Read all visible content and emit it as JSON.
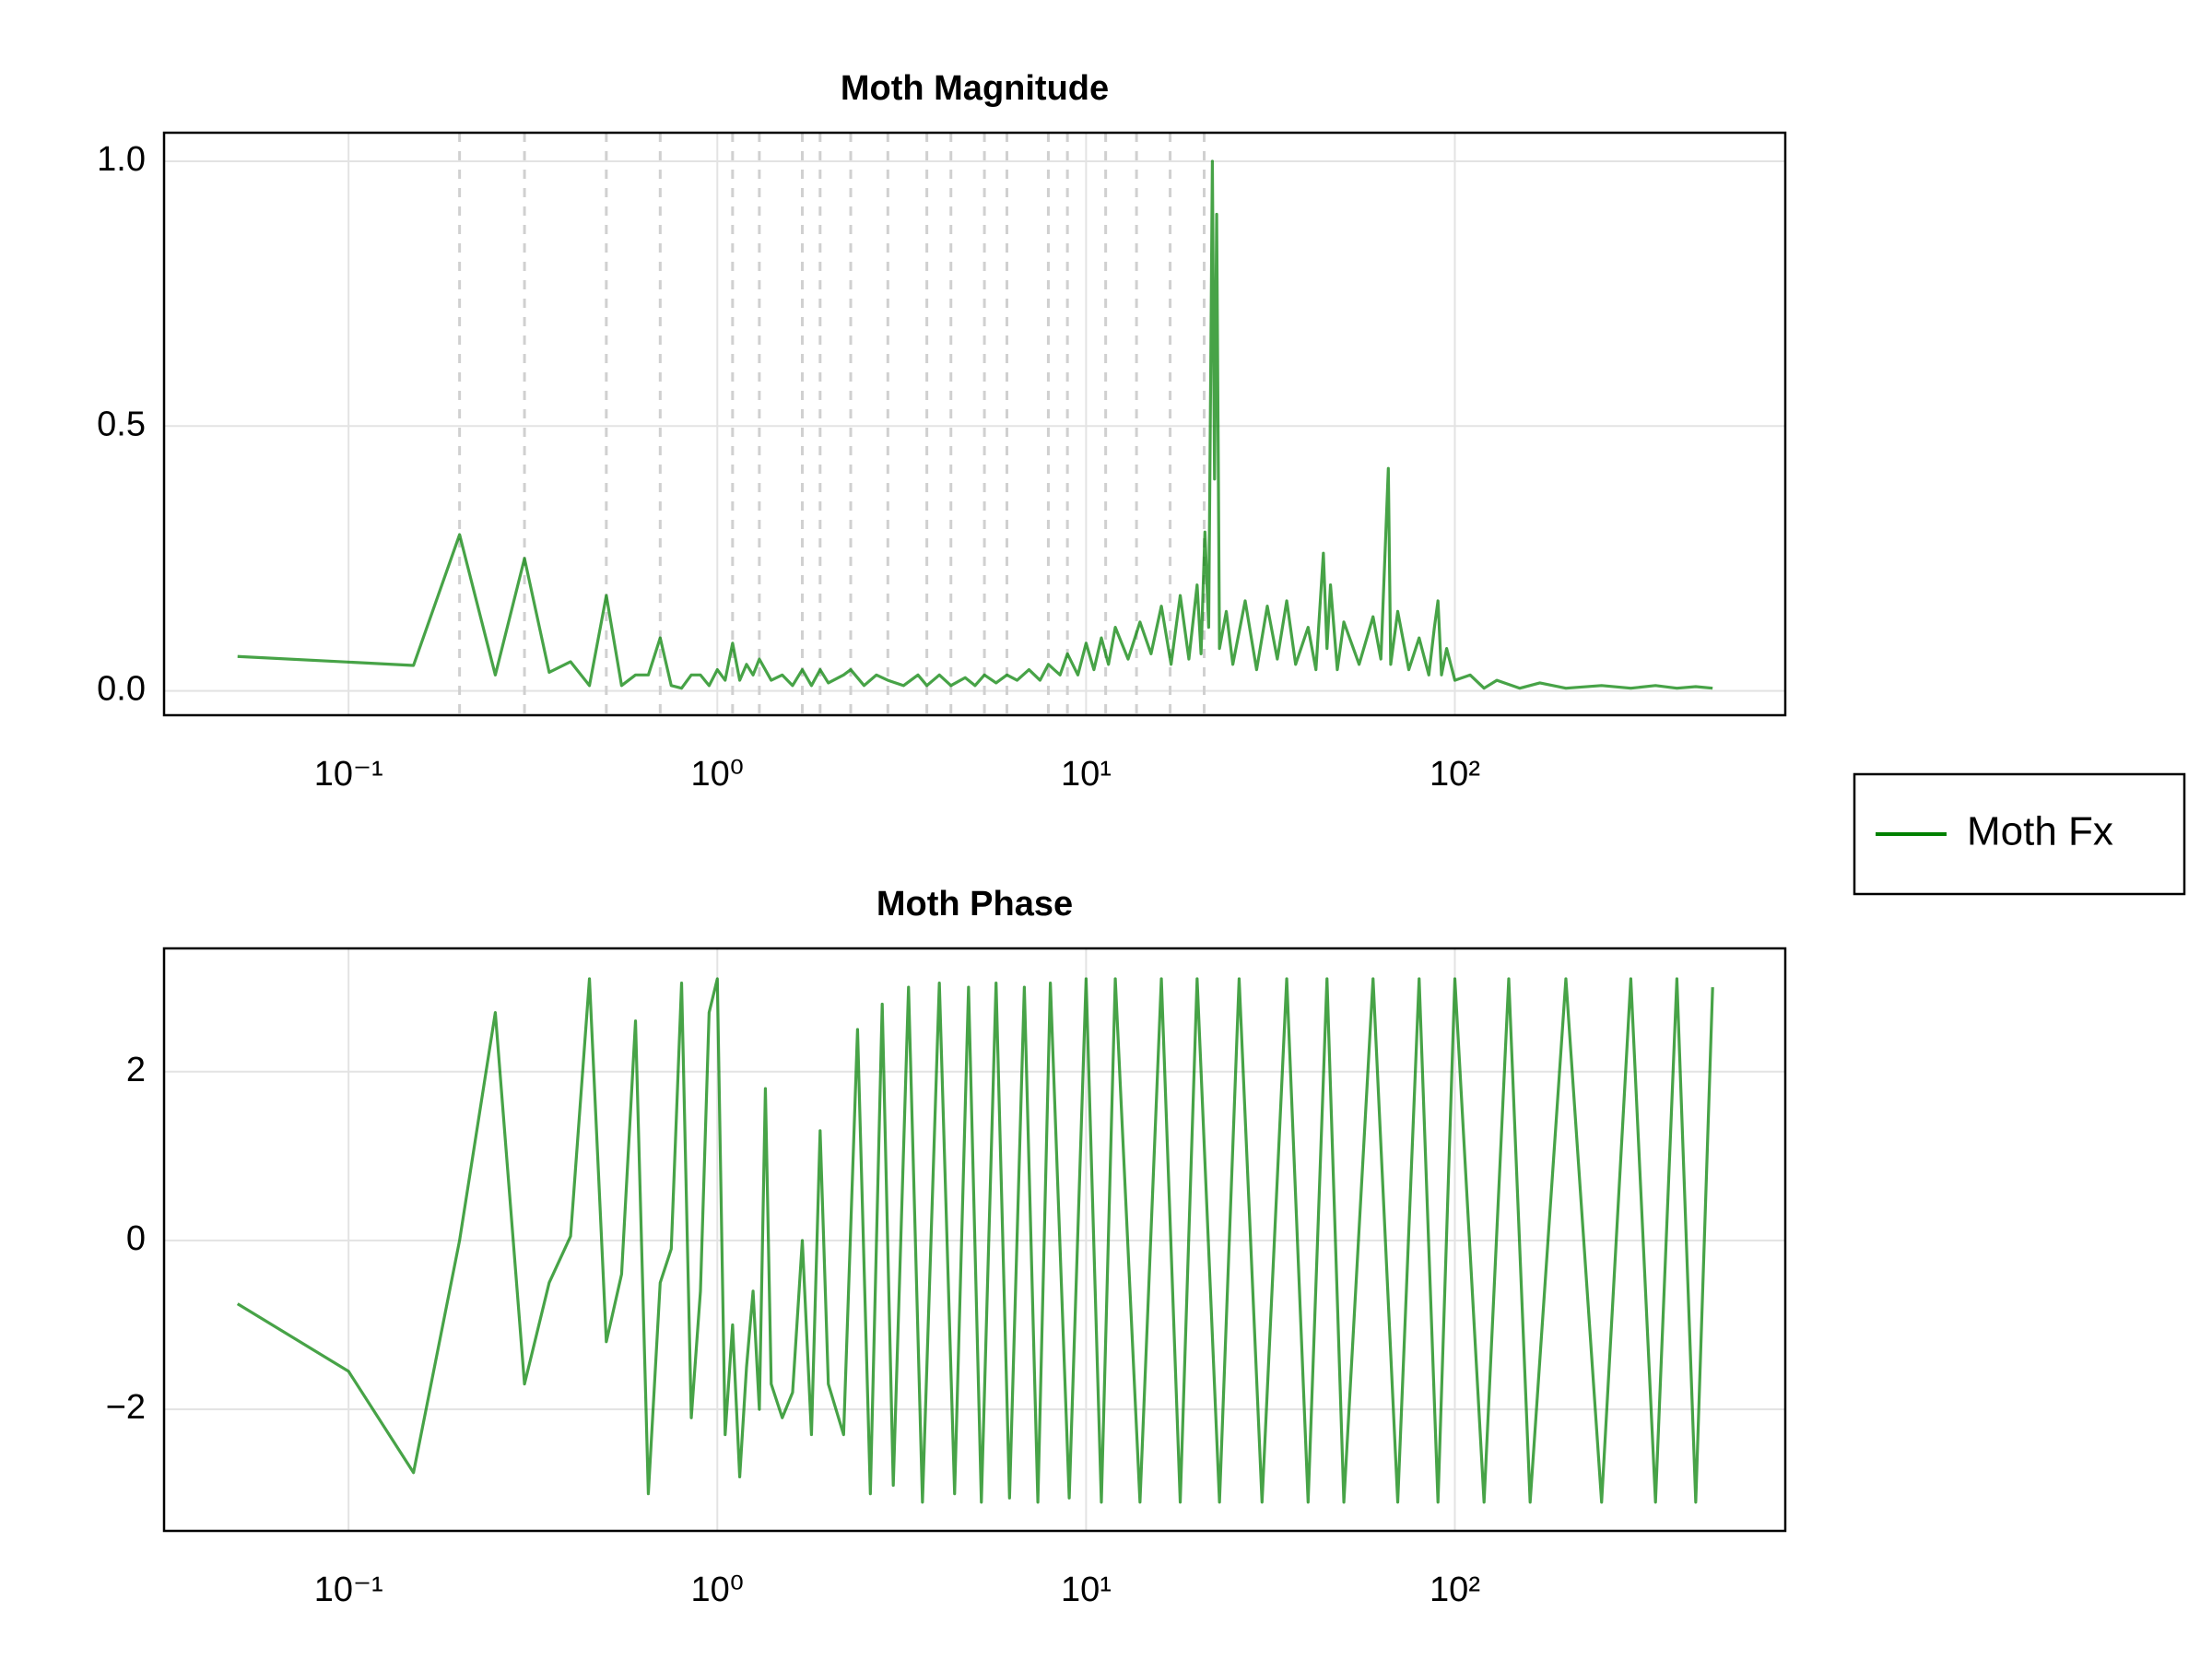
{
  "chart_data": [
    {
      "type": "line",
      "title": "Moth Magnitude",
      "xscale": "log",
      "grid": true,
      "legend": "right",
      "xlim": [
        0.0316,
        787
      ],
      "ylim": [
        -0.046,
        1.054
      ],
      "xticks": [
        {
          "value": 0.1,
          "label": "10⁻¹"
        },
        {
          "value": 1,
          "label": "10⁰"
        },
        {
          "value": 10,
          "label": "10¹"
        },
        {
          "value": 100,
          "label": "10²"
        }
      ],
      "yticks": [
        {
          "value": 0,
          "label": "0.0"
        },
        {
          "value": 0.5,
          "label": "0.5"
        },
        {
          "value": 1,
          "label": "1.0"
        }
      ],
      "vlines": [
        0.2,
        0.3,
        0.5,
        0.7,
        1.1,
        1.3,
        1.7,
        1.9,
        2.3,
        2.9,
        3.7,
        4.3,
        5.3,
        6.1,
        7.9,
        8.9,
        11.3,
        13.7,
        16.9,
        20.9
      ],
      "x": [
        0.05,
        0.15,
        0.2,
        0.25,
        0.3,
        0.35,
        0.4,
        0.45,
        0.5,
        0.55,
        0.6,
        0.65,
        0.7,
        0.75,
        0.8,
        0.85,
        0.9,
        0.95,
        1.0,
        1.05,
        1.1,
        1.15,
        1.2,
        1.25,
        1.3,
        1.4,
        1.5,
        1.6,
        1.7,
        1.8,
        1.9,
        2.0,
        2.2,
        2.3,
        2.5,
        2.7,
        2.9,
        3.2,
        3.5,
        3.7,
        4.0,
        4.3,
        4.7,
        5.0,
        5.3,
        5.7,
        6.1,
        6.5,
        7.0,
        7.5,
        7.9,
        8.5,
        8.9,
        9.5,
        10,
        10.5,
        11,
        11.5,
        12,
        13,
        14,
        15,
        16,
        17,
        18,
        19,
        20,
        20.5,
        21,
        21.5,
        22,
        22.3,
        22.6,
        23,
        24,
        25,
        27,
        29,
        31,
        33,
        35,
        37,
        40,
        42,
        44,
        45,
        46,
        48,
        50,
        55,
        60,
        63,
        65,
        66,
        67,
        70,
        75,
        80,
        85,
        88,
        90,
        92,
        95,
        100,
        110,
        120,
        130,
        150,
        170,
        200,
        250,
        300,
        350,
        400,
        450,
        500
      ],
      "series": [
        {
          "name": "Moth Fx",
          "color": "#008000",
          "values": [
            0.065,
            0.048,
            0.295,
            0.03,
            0.25,
            0.035,
            0.055,
            0.01,
            0.18,
            0.01,
            0.03,
            0.03,
            0.1,
            0.01,
            0.005,
            0.03,
            0.03,
            0.01,
            0.04,
            0.02,
            0.09,
            0.02,
            0.05,
            0.03,
            0.06,
            0.02,
            0.03,
            0.01,
            0.04,
            0.01,
            0.04,
            0.015,
            0.03,
            0.04,
            0.01,
            0.03,
            0.02,
            0.01,
            0.03,
            0.01,
            0.03,
            0.01,
            0.025,
            0.01,
            0.03,
            0.015,
            0.03,
            0.02,
            0.04,
            0.02,
            0.05,
            0.03,
            0.07,
            0.03,
            0.09,
            0.04,
            0.1,
            0.05,
            0.12,
            0.06,
            0.13,
            0.07,
            0.16,
            0.05,
            0.18,
            0.06,
            0.2,
            0.07,
            0.3,
            0.12,
            1.0,
            0.4,
            0.9,
            0.08,
            0.15,
            0.05,
            0.17,
            0.04,
            0.16,
            0.06,
            0.17,
            0.05,
            0.12,
            0.04,
            0.26,
            0.08,
            0.2,
            0.04,
            0.13,
            0.05,
            0.14,
            0.06,
            0.3,
            0.42,
            0.05,
            0.15,
            0.04,
            0.1,
            0.03,
            0.12,
            0.17,
            0.03,
            0.08,
            0.02,
            0.03,
            0.005,
            0.02,
            0.005,
            0.015,
            0.005,
            0.01,
            0.005,
            0.01,
            0.005,
            0.008,
            0.005
          ]
        }
      ]
    },
    {
      "type": "line",
      "title": "Moth Phase",
      "xscale": "log",
      "grid": true,
      "xlim": [
        0.0316,
        787
      ],
      "ylim": [
        -3.44,
        3.46
      ],
      "xticks": [
        {
          "value": 0.1,
          "label": "10⁻¹"
        },
        {
          "value": 1,
          "label": "10⁰"
        },
        {
          "value": 10,
          "label": "10¹"
        },
        {
          "value": 100,
          "label": "10²"
        }
      ],
      "yticks": [
        {
          "value": -2,
          "label": "−2"
        },
        0,
        2
      ],
      "x": [
        0.05,
        0.1,
        0.15,
        0.2,
        0.25,
        0.3,
        0.35,
        0.4,
        0.45,
        0.5,
        0.55,
        0.6,
        0.65,
        0.7,
        0.75,
        0.8,
        0.85,
        0.9,
        0.95,
        1.0,
        1.05,
        1.1,
        1.15,
        1.2,
        1.25,
        1.3,
        1.35,
        1.4,
        1.5,
        1.6,
        1.7,
        1.8,
        1.9,
        2.0,
        2.2,
        2.4,
        2.6,
        2.8,
        3.0,
        3.3,
        3.6,
        4.0,
        4.4,
        4.8,
        5.2,
        5.7,
        6.2,
        6.8,
        7.4,
        8,
        9,
        10,
        11,
        12,
        14,
        16,
        18,
        20,
        23,
        26,
        30,
        35,
        40,
        45,
        50,
        60,
        70,
        80,
        90,
        100,
        120,
        140,
        160,
        200,
        250,
        300,
        350,
        400,
        450,
        500
      ],
      "series": [
        {
          "name": "Moth Fx",
          "color": "#008000",
          "values": [
            -0.75,
            -1.55,
            -2.75,
            0,
            2.7,
            -1.7,
            -0.5,
            0.05,
            3.1,
            -1.2,
            -0.4,
            2.6,
            -3.0,
            -0.5,
            -0.1,
            3.05,
            -2.1,
            -0.6,
            2.7,
            3.1,
            -2.3,
            -1.0,
            -2.8,
            -1.5,
            -0.6,
            -2.0,
            1.8,
            -1.7,
            -2.1,
            -1.8,
            0.0,
            -2.3,
            1.3,
            -1.7,
            -2.3,
            2.5,
            -3.0,
            2.8,
            -2.9,
            3.0,
            -3.1,
            3.05,
            -3.0,
            3.0,
            -3.1,
            3.05,
            -3.05,
            3.0,
            -3.1,
            3.05,
            -3.05,
            3.1,
            -3.1,
            3.1,
            -3.1,
            3.1,
            -3.1,
            3.1,
            -3.1,
            3.1,
            -3.1,
            3.1,
            -3.1,
            3.1,
            -3.1,
            3.1,
            -3.1,
            3.1,
            -3.1,
            3.1,
            -3.1,
            3.1,
            -3.1,
            3.1,
            -3.1,
            3.1,
            -3.1,
            3.1,
            -3.1,
            3.0
          ]
        }
      ]
    }
  ]
}
